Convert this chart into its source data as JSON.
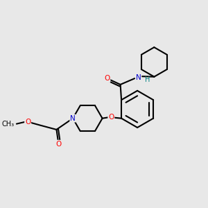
{
  "background_color": "#e8e8e8",
  "line_color": "#000000",
  "bond_width": 1.5,
  "atom_colors": {
    "O": "#ff0000",
    "N": "#0000cd",
    "H": "#008080",
    "C": "#000000"
  },
  "figsize": [
    3.0,
    3.0
  ],
  "dpi": 100
}
